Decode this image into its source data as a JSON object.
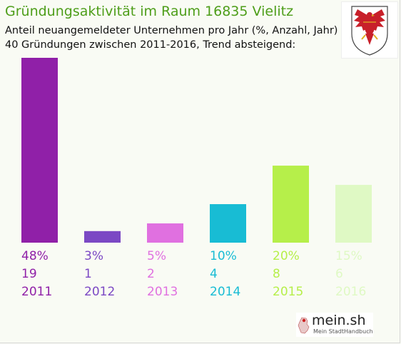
{
  "header": {
    "title": "Gründungsaktivität im Raum 16835 Vielitz",
    "subtitle_line1": "Anteil neuangemeldeter Unternehmen pro Jahr (%, Anzahl, Jahr)",
    "subtitle_line2": "40 Gründungen zwischen 2011-2016, Trend absteigend:"
  },
  "logo": {
    "main": "mein.sh",
    "tagline": "Mein StadtHandbuch"
  },
  "colors": {
    "title": "#4e9e1a",
    "crest_red": "#c8202a",
    "logo_dot": "#cc2020"
  },
  "chart_data": {
    "type": "bar",
    "categories": [
      "2011",
      "2012",
      "2013",
      "2014",
      "2015",
      "2016"
    ],
    "percent_labels": [
      "48%",
      "3%",
      "5%",
      "10%",
      "20%",
      "15%"
    ],
    "percent": [
      48,
      3,
      5,
      10,
      20,
      15
    ],
    "values": [
      19,
      1,
      2,
      4,
      8,
      6
    ],
    "colors": [
      "#9020a8",
      "#7b48c4",
      "#e070e0",
      "#18bcd4",
      "#b6ef4a",
      "#dff9c4"
    ],
    "title": "Gründungsaktivität im Raum 16835 Vielitz",
    "grid": false,
    "legend": "none"
  }
}
